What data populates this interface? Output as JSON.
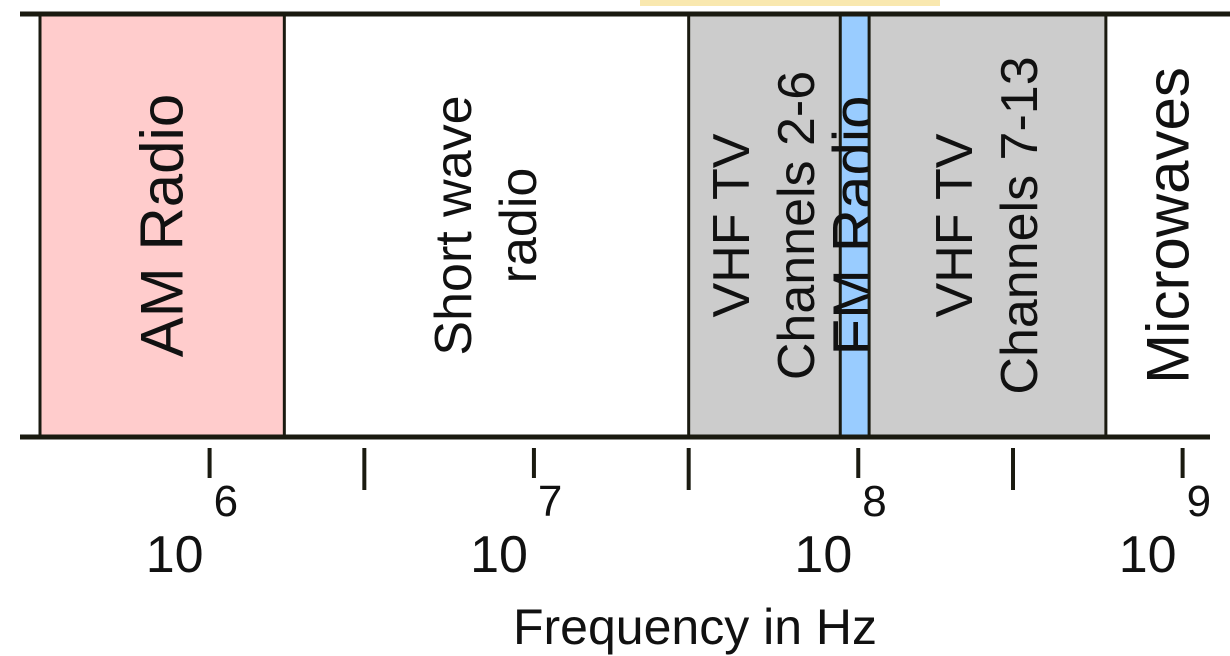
{
  "chart_data": {
    "type": "diagram",
    "title": "",
    "xlabel": "Frequency in Hz",
    "x_scale": "log",
    "x_range_hz": [
      300000,
      1400000000
    ],
    "bands": [
      {
        "lines": [
          "AM Radio"
        ],
        "start_hz": 300000,
        "end_hz": 1700000,
        "color": "#ffcccc"
      },
      {
        "lines": [
          "Short wave",
          "radio"
        ],
        "start_hz": 1700000,
        "end_hz": 30000000,
        "color": "#ffffff"
      },
      {
        "lines": [
          "VHF TV",
          "Channels 2-6"
        ],
        "start_hz": 30000000,
        "end_hz": 88000000,
        "color": "#cccccc"
      },
      {
        "lines": [
          "FM Radio"
        ],
        "start_hz": 88000000,
        "end_hz": 108000000,
        "color": "#99ccff"
      },
      {
        "lines": [
          "VHF TV",
          "Channels 7-13"
        ],
        "start_hz": 108000000,
        "end_hz": 580000000,
        "color": "#cccccc"
      },
      {
        "lines": [
          "Microwaves"
        ],
        "start_hz": 580000000,
        "end_hz": 1400000000,
        "color": "#ffffff"
      }
    ],
    "major_ticks": [
      {
        "value_hz": 1000000,
        "base": "10",
        "exponent": "6"
      },
      {
        "value_hz": 10000000,
        "base": "10",
        "exponent": "7"
      },
      {
        "value_hz": 100000000,
        "base": "10",
        "exponent": "8"
      },
      {
        "value_hz": 1000000000,
        "base": "10",
        "exponent": "9"
      }
    ],
    "minor_ticks_hz": [
      3000000,
      30000000,
      300000000
    ],
    "colors": {
      "line": "#1a1a10",
      "text": "#111111",
      "top_accent": "#f5d97a"
    }
  }
}
